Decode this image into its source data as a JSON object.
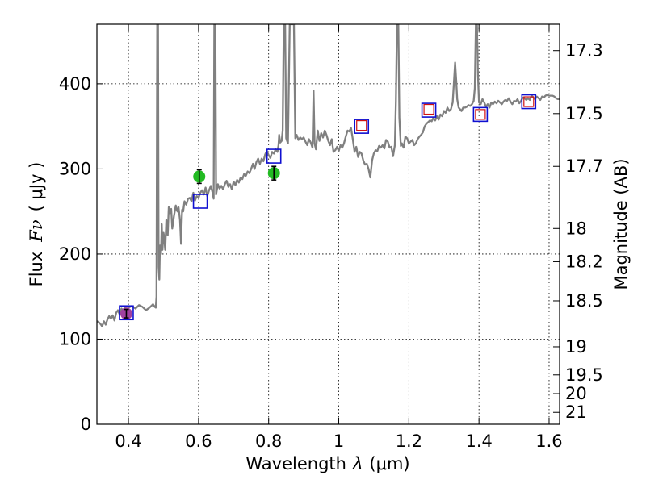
{
  "chart_data": {
    "type": "line",
    "title": "",
    "xlabel_prefix": "Wavelength",
    "xlabel_symbol": "λ",
    "xlabel_units": "(μm)",
    "ylabel_prefix": "Flux",
    "ylabel_symbol": "Fν",
    "ylabel_units": "( μJy )",
    "y2label": "Magnitude (AB)",
    "xlim": [
      0.31,
      1.63
    ],
    "ylim": [
      0,
      470
    ],
    "grid": true,
    "x_ticks": [
      0.4,
      0.6,
      0.8,
      1.0,
      1.2,
      1.4,
      1.6
    ],
    "x_tick_labels": [
      "0.4",
      "0.6",
      "0.8",
      "1",
      "1.2",
      "1.4",
      "1.6"
    ],
    "y_ticks": [
      0,
      100,
      200,
      300,
      400
    ],
    "y_tick_labels": [
      "0",
      "100",
      "200",
      "300",
      "400"
    ],
    "y2_ticks": [
      {
        "label": "17.3",
        "flux": 439
      },
      {
        "label": "17.5",
        "flux": 365
      },
      {
        "label": "17.7",
        "flux": 303
      },
      {
        "label": "18",
        "flux": 230
      },
      {
        "label": "18.2",
        "flux": 191
      },
      {
        "label": "18.5",
        "flux": 145
      },
      {
        "label": "19",
        "flux": 91
      },
      {
        "label": "19.5",
        "flux": 58
      },
      {
        "label": "20",
        "flux": 36
      },
      {
        "label": "21",
        "flux": 14
      }
    ],
    "series": [
      {
        "name": "spectrum",
        "kind": "line",
        "color": "#808080",
        "points": [
          [
            0.31,
            121
          ],
          [
            0.315,
            120
          ],
          [
            0.32,
            118
          ],
          [
            0.325,
            115
          ],
          [
            0.33,
            121
          ],
          [
            0.335,
            117
          ],
          [
            0.34,
            123
          ],
          [
            0.345,
            127
          ],
          [
            0.35,
            124
          ],
          [
            0.355,
            128
          ],
          [
            0.36,
            122
          ],
          [
            0.365,
            131
          ],
          [
            0.37,
            134
          ],
          [
            0.375,
            129
          ],
          [
            0.38,
            136
          ],
          [
            0.385,
            133
          ],
          [
            0.39,
            138
          ],
          [
            0.395,
            135
          ],
          [
            0.4,
            137
          ],
          [
            0.41,
            139
          ],
          [
            0.42,
            136
          ],
          [
            0.43,
            140
          ],
          [
            0.44,
            138
          ],
          [
            0.45,
            134
          ],
          [
            0.46,
            137
          ],
          [
            0.47,
            141
          ],
          [
            0.475,
            138
          ],
          [
            0.478,
            137
          ],
          [
            0.48,
            150
          ],
          [
            0.482,
            470
          ],
          [
            0.4845,
            470
          ],
          [
            0.486,
            185
          ],
          [
            0.488,
            170
          ],
          [
            0.49,
            210
          ],
          [
            0.493,
            200
          ],
          [
            0.495,
            235
          ],
          [
            0.497,
            205
          ],
          [
            0.5,
            225
          ],
          [
            0.502,
            220
          ],
          [
            0.505,
            205
          ],
          [
            0.508,
            240
          ],
          [
            0.512,
            222
          ],
          [
            0.515,
            255
          ],
          [
            0.518,
            248
          ],
          [
            0.522,
            253
          ],
          [
            0.525,
            230
          ],
          [
            0.53,
            245
          ],
          [
            0.535,
            257
          ],
          [
            0.538,
            252
          ],
          [
            0.54,
            250
          ],
          [
            0.543,
            255
          ],
          [
            0.547,
            240
          ],
          [
            0.55,
            212
          ],
          [
            0.553,
            252
          ],
          [
            0.556,
            250
          ],
          [
            0.56,
            262
          ],
          [
            0.565,
            258
          ],
          [
            0.57,
            265
          ],
          [
            0.575,
            266
          ],
          [
            0.58,
            262
          ],
          [
            0.585,
            272
          ],
          [
            0.59,
            263
          ],
          [
            0.595,
            268
          ],
          [
            0.6,
            266
          ],
          [
            0.605,
            272
          ],
          [
            0.61,
            275
          ],
          [
            0.615,
            270
          ],
          [
            0.62,
            278
          ],
          [
            0.625,
            268
          ],
          [
            0.63,
            275
          ],
          [
            0.635,
            280
          ],
          [
            0.64,
            272
          ],
          [
            0.643,
            265
          ],
          [
            0.645,
            470
          ],
          [
            0.648,
            470
          ],
          [
            0.65,
            270
          ],
          [
            0.655,
            282
          ],
          [
            0.66,
            277
          ],
          [
            0.665,
            280
          ],
          [
            0.67,
            276
          ],
          [
            0.675,
            282
          ],
          [
            0.68,
            286
          ],
          [
            0.685,
            279
          ],
          [
            0.69,
            282
          ],
          [
            0.695,
            276
          ],
          [
            0.7,
            285
          ],
          [
            0.705,
            281
          ],
          [
            0.71,
            287
          ],
          [
            0.715,
            284
          ],
          [
            0.72,
            290
          ],
          [
            0.725,
            288
          ],
          [
            0.73,
            294
          ],
          [
            0.735,
            292
          ],
          [
            0.74,
            297
          ],
          [
            0.745,
            295
          ],
          [
            0.75,
            300
          ],
          [
            0.755,
            306
          ],
          [
            0.76,
            300
          ],
          [
            0.765,
            308
          ],
          [
            0.77,
            312
          ],
          [
            0.775,
            306
          ],
          [
            0.78,
            312
          ],
          [
            0.785,
            309
          ],
          [
            0.79,
            317
          ],
          [
            0.795,
            321
          ],
          [
            0.8,
            316
          ],
          [
            0.805,
            313
          ],
          [
            0.81,
            320
          ],
          [
            0.815,
            318
          ],
          [
            0.82,
            323
          ],
          [
            0.825,
            320
          ],
          [
            0.828,
            328
          ],
          [
            0.83,
            340
          ],
          [
            0.833,
            331
          ],
          [
            0.837,
            333
          ],
          [
            0.84,
            345
          ],
          [
            0.843,
            470
          ],
          [
            0.847,
            470
          ],
          [
            0.85,
            336
          ],
          [
            0.855,
            330
          ],
          [
            0.86,
            470
          ],
          [
            0.864,
            470
          ],
          [
            0.868,
            470
          ],
          [
            0.872,
            470
          ],
          [
            0.876,
            336
          ],
          [
            0.88,
            340
          ],
          [
            0.885,
            334
          ],
          [
            0.89,
            337
          ],
          [
            0.895,
            335
          ],
          [
            0.9,
            337
          ],
          [
            0.905,
            332
          ],
          [
            0.91,
            328
          ],
          [
            0.915,
            335
          ],
          [
            0.92,
            331
          ],
          [
            0.925,
            325
          ],
          [
            0.928,
            392
          ],
          [
            0.931,
            330
          ],
          [
            0.935,
            323
          ],
          [
            0.94,
            345
          ],
          [
            0.945,
            333
          ],
          [
            0.95,
            342
          ],
          [
            0.955,
            337
          ],
          [
            0.96,
            345
          ],
          [
            0.965,
            340
          ],
          [
            0.97,
            333
          ],
          [
            0.975,
            328
          ],
          [
            0.98,
            335
          ],
          [
            0.985,
            320
          ],
          [
            0.99,
            322
          ],
          [
            0.995,
            326
          ],
          [
            1.0,
            321
          ],
          [
            1.005,
            328
          ],
          [
            1.01,
            325
          ],
          [
            1.015,
            330
          ],
          [
            1.02,
            338
          ],
          [
            1.025,
            345
          ],
          [
            1.03,
            344
          ],
          [
            1.035,
            348
          ],
          [
            1.04,
            335
          ],
          [
            1.045,
            320
          ],
          [
            1.05,
            326
          ],
          [
            1.055,
            314
          ],
          [
            1.06,
            320
          ],
          [
            1.065,
            318
          ],
          [
            1.07,
            310
          ],
          [
            1.075,
            305
          ],
          [
            1.08,
            306
          ],
          [
            1.085,
            300
          ],
          [
            1.09,
            290
          ],
          [
            1.095,
            310
          ],
          [
            1.1,
            318
          ],
          [
            1.105,
            322
          ],
          [
            1.11,
            321
          ],
          [
            1.115,
            327
          ],
          [
            1.12,
            325
          ],
          [
            1.125,
            328
          ],
          [
            1.13,
            324
          ],
          [
            1.135,
            334
          ],
          [
            1.14,
            332
          ],
          [
            1.145,
            325
          ],
          [
            1.15,
            326
          ],
          [
            1.155,
            315
          ],
          [
            1.16,
            328
          ],
          [
            1.163,
            380
          ],
          [
            1.166,
            470
          ],
          [
            1.17,
            470
          ],
          [
            1.173,
            360
          ],
          [
            1.177,
            327
          ],
          [
            1.18,
            330
          ],
          [
            1.185,
            325
          ],
          [
            1.19,
            338
          ],
          [
            1.195,
            336
          ],
          [
            1.2,
            330
          ],
          [
            1.205,
            332
          ],
          [
            1.21,
            334
          ],
          [
            1.215,
            328
          ],
          [
            1.22,
            330
          ],
          [
            1.225,
            335
          ],
          [
            1.23,
            338
          ],
          [
            1.235,
            340
          ],
          [
            1.24,
            343
          ],
          [
            1.245,
            350
          ],
          [
            1.25,
            353
          ],
          [
            1.255,
            355
          ],
          [
            1.26,
            357
          ],
          [
            1.265,
            356
          ],
          [
            1.27,
            360
          ],
          [
            1.275,
            357
          ],
          [
            1.28,
            362
          ],
          [
            1.285,
            358
          ],
          [
            1.29,
            364
          ],
          [
            1.295,
            362
          ],
          [
            1.3,
            368
          ],
          [
            1.305,
            366
          ],
          [
            1.31,
            372
          ],
          [
            1.315,
            368
          ],
          [
            1.32,
            370
          ],
          [
            1.325,
            378
          ],
          [
            1.328,
            398
          ],
          [
            1.332,
            425
          ],
          [
            1.335,
            405
          ],
          [
            1.338,
            382
          ],
          [
            1.342,
            372
          ],
          [
            1.35,
            368
          ],
          [
            1.355,
            372
          ],
          [
            1.36,
            372
          ],
          [
            1.365,
            373
          ],
          [
            1.37,
            375
          ],
          [
            1.375,
            374
          ],
          [
            1.38,
            376
          ],
          [
            1.385,
            380
          ],
          [
            1.388,
            395
          ],
          [
            1.391,
            470
          ],
          [
            1.394,
            470
          ],
          [
            1.397,
            410
          ],
          [
            1.4,
            378
          ],
          [
            1.405,
            376
          ],
          [
            1.41,
            382
          ],
          [
            1.415,
            378
          ],
          [
            1.42,
            373
          ],
          [
            1.425,
            376
          ],
          [
            1.43,
            372
          ],
          [
            1.435,
            378
          ],
          [
            1.44,
            376
          ],
          [
            1.445,
            379
          ],
          [
            1.45,
            377
          ],
          [
            1.455,
            380
          ],
          [
            1.46,
            378
          ],
          [
            1.465,
            376
          ],
          [
            1.47,
            379
          ],
          [
            1.475,
            381
          ],
          [
            1.48,
            380
          ],
          [
            1.485,
            383
          ],
          [
            1.49,
            379
          ],
          [
            1.495,
            376
          ],
          [
            1.5,
            380
          ],
          [
            1.505,
            379
          ],
          [
            1.51,
            382
          ],
          [
            1.515,
            377
          ],
          [
            1.52,
            380
          ],
          [
            1.525,
            384
          ],
          [
            1.53,
            383
          ],
          [
            1.535,
            381
          ],
          [
            1.54,
            383
          ],
          [
            1.545,
            381
          ],
          [
            1.55,
            386
          ],
          [
            1.555,
            384
          ],
          [
            1.56,
            382
          ],
          [
            1.565,
            385
          ],
          [
            1.57,
            383
          ],
          [
            1.575,
            381
          ],
          [
            1.58,
            385
          ],
          [
            1.585,
            384
          ],
          [
            1.59,
            386
          ],
          [
            1.595,
            387
          ],
          [
            1.6,
            386
          ],
          [
            1.605,
            386
          ],
          [
            1.61,
            386
          ],
          [
            1.615,
            385
          ],
          [
            1.62,
            383
          ],
          [
            1.625,
            382
          ],
          [
            1.63,
            382
          ]
        ]
      },
      {
        "name": "green-photometry",
        "kind": "errorbar",
        "marker": "circle",
        "color": "#22bb22",
        "points": [
          {
            "x": 0.602,
            "y": 291,
            "err": 8
          },
          {
            "x": 0.815,
            "y": 295,
            "err": 8
          }
        ]
      },
      {
        "name": "purple-photometry",
        "kind": "errorbar",
        "marker": "circle",
        "color": "#a040a0",
        "points": [
          {
            "x": 0.394,
            "y": 130,
            "err": 5
          }
        ]
      },
      {
        "name": "blue-squares",
        "kind": "scatter",
        "marker": "square",
        "color": "#1010d0",
        "points": [
          [
            0.394,
            131
          ],
          [
            0.605,
            262
          ],
          [
            0.815,
            315
          ],
          [
            1.065,
            350
          ],
          [
            1.257,
            369
          ],
          [
            1.404,
            364
          ],
          [
            1.542,
            379
          ]
        ]
      },
      {
        "name": "red-squares",
        "kind": "scatter",
        "marker": "square",
        "color": "#d01010",
        "points": [
          [
            1.065,
            351
          ],
          [
            1.257,
            370
          ],
          [
            1.404,
            364
          ],
          [
            1.542,
            379
          ]
        ]
      }
    ]
  }
}
